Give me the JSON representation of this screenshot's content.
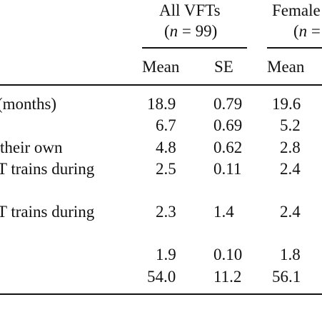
{
  "header": {
    "group1_title": "All VFTs",
    "group1_n_prefix": "(",
    "group1_n_var": "n",
    "group1_n_rest": " = 99)",
    "group2_title": "Female",
    "group2_n_prefix": "(",
    "group2_n_var": "n",
    "group2_n_rest": " =",
    "col_mean": "Mean",
    "col_se": "SE",
    "col_mean2": "Mean"
  },
  "rows": [
    {
      "label": "(months)",
      "mean": "18.9",
      "se": "0.79",
      "mean2": "19.6"
    },
    {
      "label": "",
      "mean": "6.7",
      "se": "0.69",
      "mean2": "5.2"
    },
    {
      "label": "their own",
      "mean": "4.8",
      "se": "0.62",
      "mean2": "2.8"
    },
    {
      "label": "T trains during",
      "mean": "2.5",
      "se": "0.11",
      "mean2": "2.4"
    },
    {
      "label": "T trains during",
      "mean": "2.3",
      "se": "1.4",
      "mean2": "2.4"
    },
    {
      "label": "",
      "mean": "1.9",
      "se": "0.10",
      "mean2": "1.8"
    },
    {
      "label": "",
      "mean": "54.0",
      "se": "11.2",
      "mean2": "56.1"
    }
  ]
}
